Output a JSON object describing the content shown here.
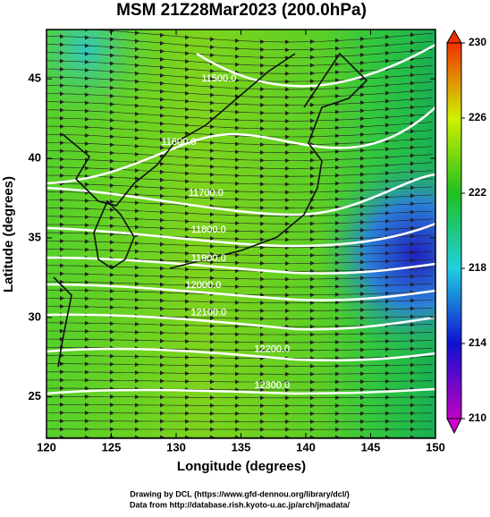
{
  "chart_data": {
    "type": "map",
    "title": "MSM 21Z28Mar2023 (200.0hPa)",
    "x_label": "Longitude (degrees)",
    "y_label": "Latitude  (degrees)",
    "xlim": [
      120,
      150
    ],
    "xticks": [
      120,
      125,
      130,
      135,
      140,
      145,
      150
    ],
    "ylim": [
      22.4,
      48.1
    ],
    "yticks": [
      25,
      30,
      35,
      40,
      45
    ],
    "clim": [
      210,
      230
    ],
    "cticks": [
      210,
      214,
      218,
      222,
      226,
      230
    ],
    "annotations": [
      {
        "text": "11500.0",
        "lon": 133.3,
        "lat": 45
      },
      {
        "text": "11600.0",
        "lon": 130.2,
        "lat": 41
      },
      {
        "text": "11700.0",
        "lon": 132.3,
        "lat": 37.8
      },
      {
        "text": "11800.0",
        "lon": 132.5,
        "lat": 35.5
      },
      {
        "text": "11900.0",
        "lon": 132.5,
        "lat": 33.7
      },
      {
        "text": "12000.0",
        "lon": 132.1,
        "lat": 32
      },
      {
        "text": "12100.0",
        "lon": 132.5,
        "lat": 30.3
      },
      {
        "text": "12200.0",
        "lon": 137.4,
        "lat": 28
      },
      {
        "text": "12300.0",
        "lon": 137.4,
        "lat": 25.7
      }
    ],
    "footer": [
      "Drawing by DCL (https://www.gfd-dennou.org/library/dcl/)",
      "Data from http://database.rish.kyoto-u.ac.jp/arch/jmadata/"
    ]
  }
}
